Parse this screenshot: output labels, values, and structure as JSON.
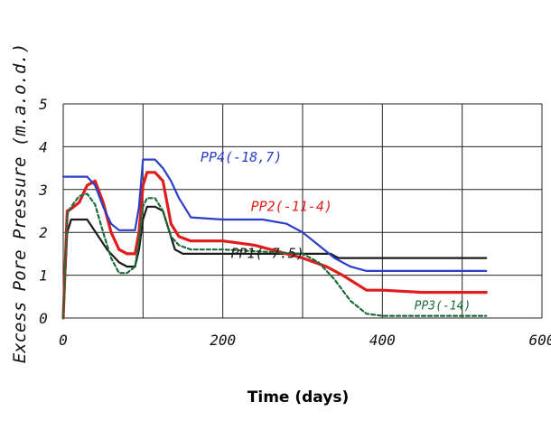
{
  "chart_data": {
    "type": "line",
    "xlabel": "Time (days)",
    "ylabel": "Excess Pore Pressure (m.a.o.d.)",
    "xlim": [
      0,
      600
    ],
    "ylim": [
      0,
      5
    ],
    "x_ticks": [
      "0",
      "200",
      "400",
      "600"
    ],
    "y_ticks": [
      "0",
      "1",
      "2",
      "3",
      "4",
      "5"
    ],
    "grid": true,
    "series": [
      {
        "name": "PP1 (-7.5)",
        "label": "PP1(-7.5)",
        "color": "#1a1a1a",
        "style": "solid",
        "x": [
          0,
          5,
          10,
          30,
          55,
          70,
          80,
          90,
          95,
          100,
          105,
          115,
          125,
          130,
          140,
          150,
          160,
          200,
          250,
          300,
          320,
          335,
          345,
          360,
          400,
          450,
          500,
          530
        ],
        "y": [
          0,
          2.0,
          2.3,
          2.3,
          1.6,
          1.3,
          1.2,
          1.2,
          1.6,
          2.3,
          2.6,
          2.6,
          2.5,
          2.2,
          1.6,
          1.5,
          1.5,
          1.5,
          1.5,
          1.5,
          1.5,
          1.5,
          1.4,
          1.4,
          1.4,
          1.4,
          1.4,
          1.4
        ]
      },
      {
        "name": "PP2 (-11.4)",
        "label": "PP2(-11-4)",
        "color": "#e01c1c",
        "style": "solid",
        "x": [
          0,
          5,
          10,
          20,
          30,
          40,
          50,
          60,
          70,
          80,
          90,
          95,
          100,
          105,
          115,
          125,
          135,
          145,
          160,
          200,
          240,
          280,
          300,
          330,
          350,
          380,
          400,
          450,
          500,
          530
        ],
        "y": [
          0,
          2.5,
          2.55,
          2.7,
          3.1,
          3.2,
          2.7,
          2.0,
          1.6,
          1.5,
          1.5,
          2.0,
          3.1,
          3.4,
          3.4,
          3.2,
          2.2,
          1.9,
          1.8,
          1.8,
          1.7,
          1.5,
          1.4,
          1.2,
          1.0,
          0.65,
          0.65,
          0.6,
          0.6,
          0.6
        ]
      },
      {
        "name": "PP3 (-14)",
        "label": "PP3(-14)",
        "color": "#1e6b3a",
        "style": "dashed",
        "x": [
          0,
          5,
          10,
          20,
          30,
          40,
          50,
          60,
          70,
          80,
          90,
          95,
          100,
          105,
          115,
          125,
          135,
          145,
          160,
          200,
          250,
          300,
          320,
          340,
          360,
          380,
          400,
          450,
          500,
          530
        ],
        "y": [
          0,
          2.4,
          2.6,
          2.85,
          2.9,
          2.65,
          2.0,
          1.4,
          1.05,
          1.05,
          1.2,
          1.8,
          2.6,
          2.8,
          2.8,
          2.5,
          1.9,
          1.7,
          1.6,
          1.6,
          1.55,
          1.5,
          1.3,
          0.9,
          0.4,
          0.1,
          0.05,
          0.05,
          0.05,
          0.05
        ]
      },
      {
        "name": "PP4 (-18.7)",
        "label": "PP4(-18,7)",
        "color": "#2a3ec8",
        "style": "solid",
        "x": [
          0,
          5,
          10,
          20,
          30,
          40,
          50,
          60,
          70,
          80,
          90,
          95,
          100,
          105,
          115,
          125,
          135,
          145,
          160,
          200,
          250,
          280,
          300,
          320,
          340,
          360,
          380,
          400,
          450,
          500,
          530
        ],
        "y": [
          3.3,
          3.3,
          3.3,
          3.3,
          3.3,
          3.1,
          2.6,
          2.2,
          2.05,
          2.05,
          2.05,
          2.6,
          3.7,
          3.7,
          3.7,
          3.5,
          3.2,
          2.8,
          2.35,
          2.3,
          2.3,
          2.2,
          2.0,
          1.7,
          1.4,
          1.2,
          1.1,
          1.1,
          1.1,
          1.1,
          1.1
        ]
      }
    ]
  }
}
